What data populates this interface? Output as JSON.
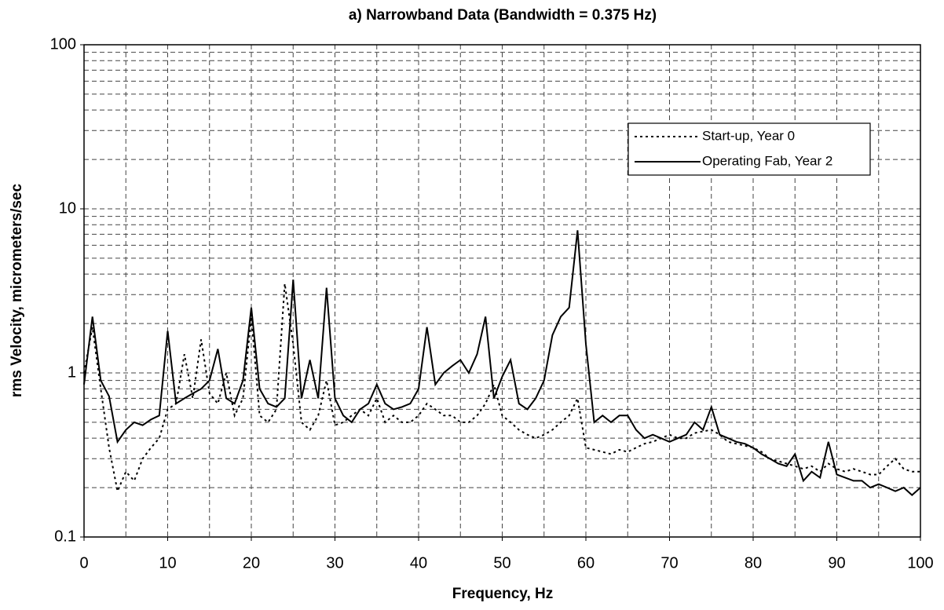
{
  "chart_data": {
    "type": "line",
    "title": "a)  Narrowband Data (Bandwidth = 0.375 Hz)",
    "x_label": "Frequency, Hz",
    "y_label": "rms Velocity, micrometers/sec",
    "log_y": true,
    "grid": true,
    "legend": "upper right",
    "xlim": [
      0,
      100
    ],
    "xticks": [
      0,
      10,
      20,
      30,
      40,
      50,
      60,
      70,
      80,
      90,
      100
    ],
    "ylim": [
      0.1,
      100
    ],
    "yticks": [
      0.1,
      1,
      10,
      100
    ],
    "x": [
      0,
      1,
      2,
      3,
      4,
      5,
      6,
      7,
      8,
      9,
      10,
      11,
      12,
      13,
      14,
      15,
      16,
      17,
      18,
      19,
      20,
      21,
      22,
      23,
      24,
      25,
      26,
      27,
      28,
      29,
      30,
      31,
      32,
      33,
      34,
      35,
      36,
      37,
      38,
      39,
      40,
      41,
      42,
      43,
      44,
      45,
      46,
      47,
      48,
      49,
      50,
      51,
      52,
      53,
      54,
      55,
      56,
      57,
      58,
      59,
      60,
      61,
      62,
      63,
      64,
      65,
      66,
      67,
      68,
      69,
      70,
      71,
      72,
      73,
      74,
      75,
      76,
      77,
      78,
      79,
      80,
      81,
      82,
      83,
      84,
      85,
      86,
      87,
      88,
      89,
      90,
      91,
      92,
      93,
      94,
      95,
      96,
      97,
      98,
      99,
      100
    ],
    "series": [
      {
        "name": "Start-up, Year 0",
        "color": "#000000",
        "dash": "dotted",
        "values": [
          1.0,
          1.9,
          0.8,
          0.35,
          0.19,
          0.25,
          0.22,
          0.3,
          0.35,
          0.4,
          0.6,
          0.65,
          1.3,
          0.7,
          1.6,
          0.75,
          0.65,
          1.0,
          0.55,
          0.7,
          2.2,
          0.55,
          0.5,
          0.6,
          3.5,
          1.5,
          0.5,
          0.45,
          0.55,
          0.9,
          0.48,
          0.5,
          0.55,
          0.6,
          0.55,
          0.7,
          0.5,
          0.55,
          0.5,
          0.5,
          0.55,
          0.65,
          0.6,
          0.55,
          0.55,
          0.5,
          0.5,
          0.55,
          0.65,
          0.85,
          0.55,
          0.5,
          0.45,
          0.42,
          0.4,
          0.42,
          0.45,
          0.5,
          0.55,
          0.7,
          0.35,
          0.34,
          0.33,
          0.32,
          0.34,
          0.33,
          0.35,
          0.37,
          0.38,
          0.4,
          0.42,
          0.4,
          0.4,
          0.43,
          0.44,
          0.45,
          0.42,
          0.38,
          0.37,
          0.36,
          0.35,
          0.33,
          0.3,
          0.29,
          0.28,
          0.27,
          0.26,
          0.27,
          0.25,
          0.28,
          0.26,
          0.25,
          0.26,
          0.25,
          0.24,
          0.24,
          0.27,
          0.3,
          0.26,
          0.25,
          0.25
        ]
      },
      {
        "name": "Operating Fab, Year 2",
        "color": "#000000",
        "dash": "solid",
        "values": [
          0.85,
          2.2,
          0.9,
          0.72,
          0.38,
          0.45,
          0.5,
          0.48,
          0.52,
          0.55,
          1.8,
          0.65,
          0.7,
          0.75,
          0.8,
          0.9,
          1.4,
          0.7,
          0.65,
          0.9,
          2.5,
          0.8,
          0.65,
          0.62,
          0.7,
          3.7,
          0.7,
          1.2,
          0.7,
          3.3,
          0.7,
          0.55,
          0.5,
          0.6,
          0.65,
          0.85,
          0.65,
          0.6,
          0.62,
          0.65,
          0.8,
          1.9,
          0.85,
          1.0,
          1.1,
          1.2,
          1.0,
          1.3,
          2.2,
          0.7,
          0.95,
          1.2,
          0.65,
          0.6,
          0.7,
          0.9,
          1.7,
          2.2,
          2.5,
          7.4,
          1.5,
          0.5,
          0.55,
          0.5,
          0.55,
          0.55,
          0.45,
          0.4,
          0.42,
          0.4,
          0.38,
          0.4,
          0.42,
          0.5,
          0.45,
          0.62,
          0.42,
          0.4,
          0.38,
          0.37,
          0.35,
          0.32,
          0.3,
          0.28,
          0.27,
          0.32,
          0.22,
          0.25,
          0.23,
          0.38,
          0.24,
          0.23,
          0.22,
          0.22,
          0.2,
          0.21,
          0.2,
          0.19,
          0.2,
          0.18,
          0.2
        ]
      }
    ]
  }
}
